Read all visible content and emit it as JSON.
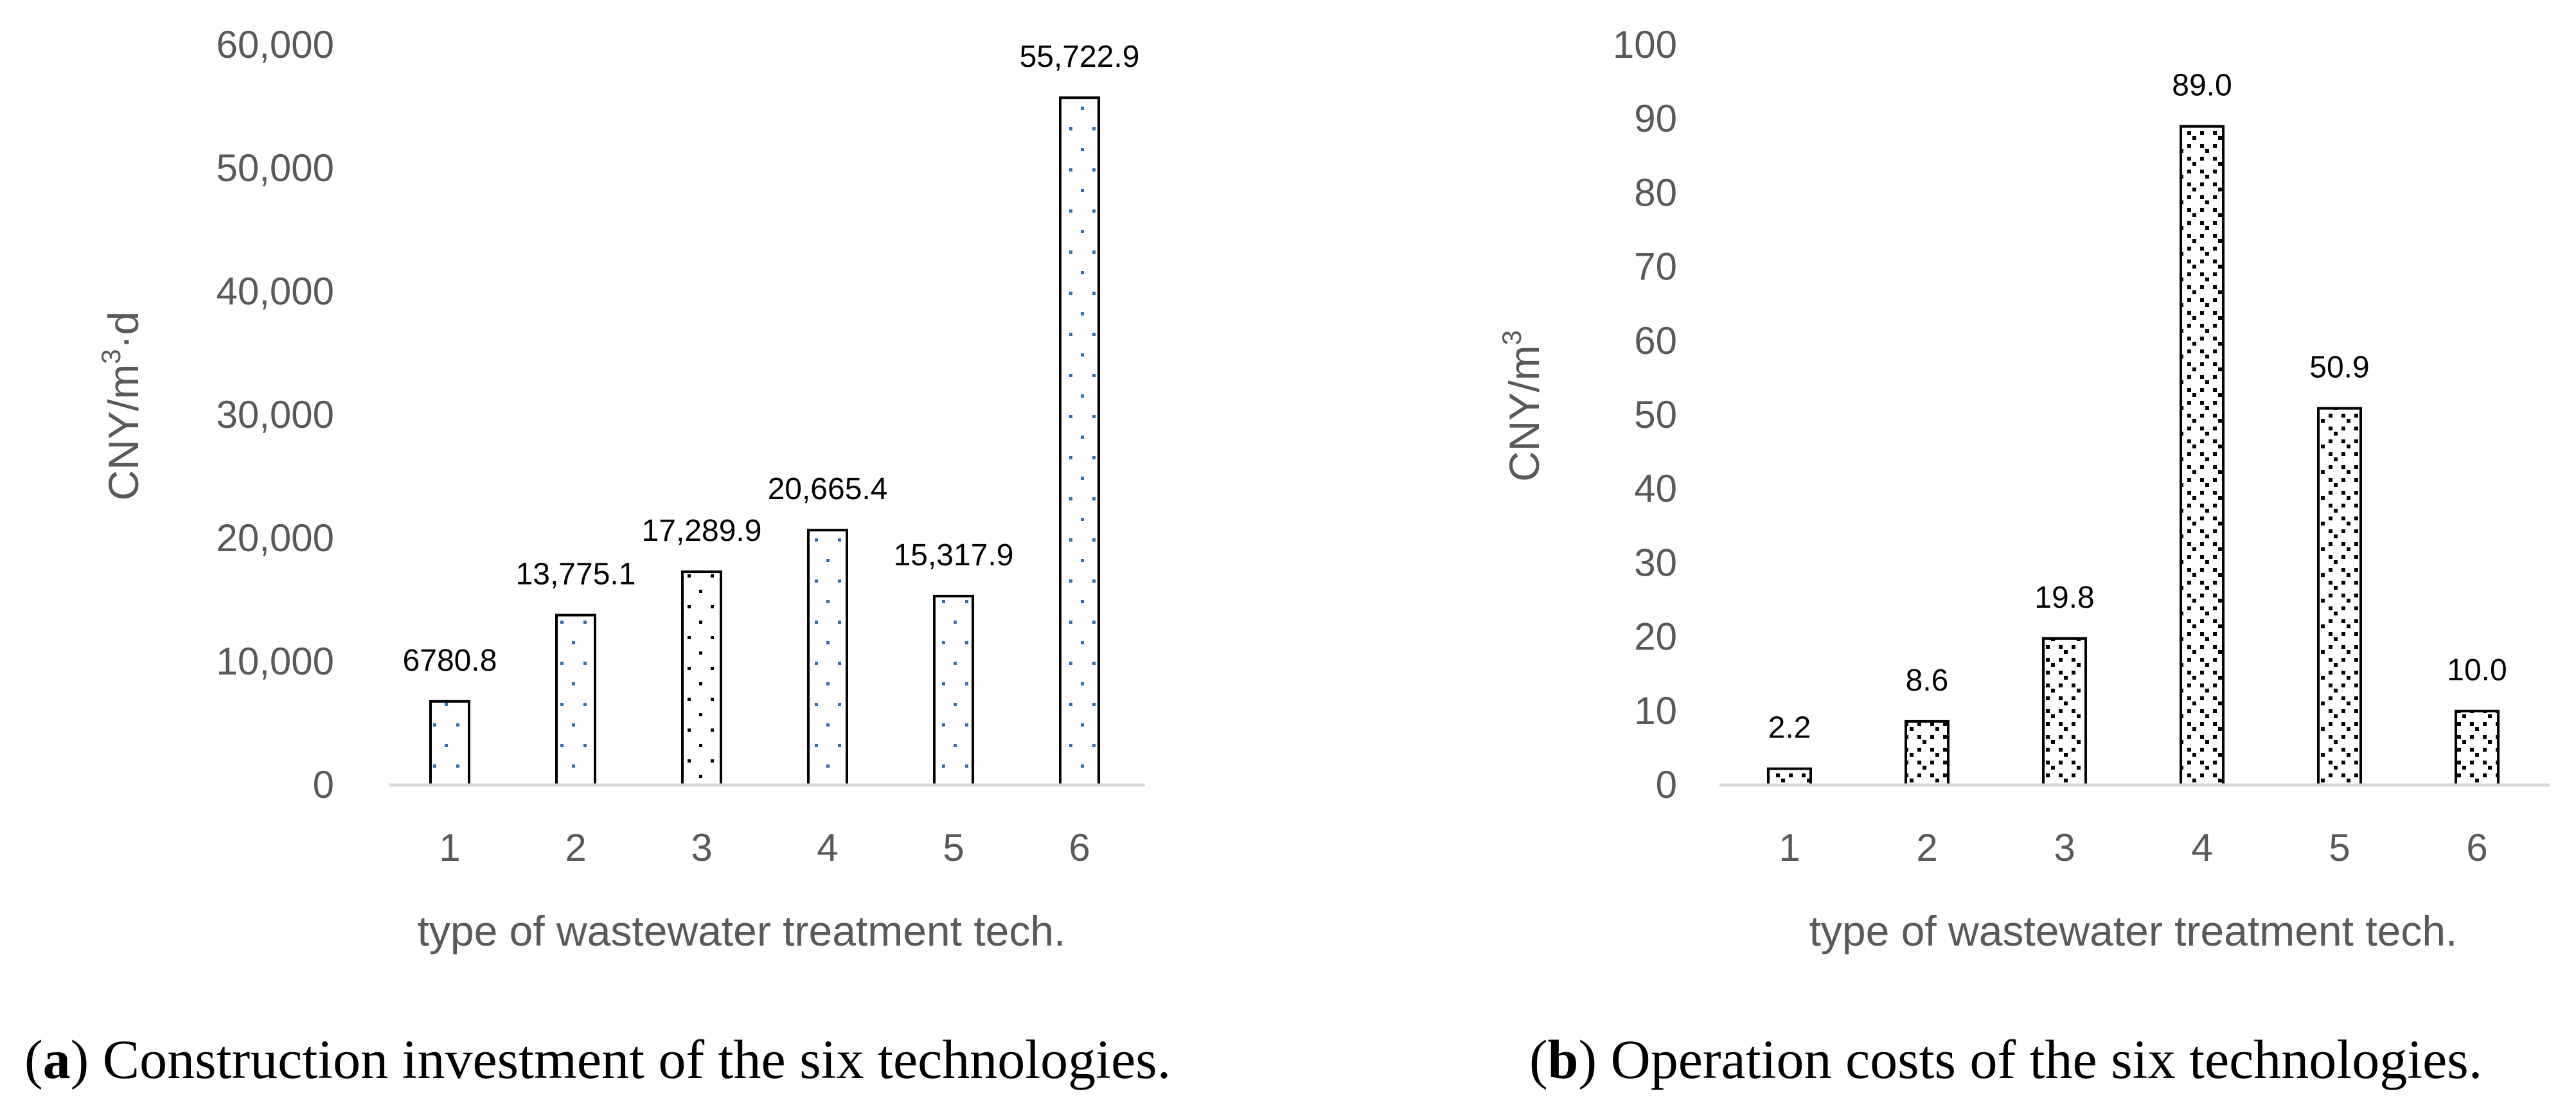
{
  "chart_data": [
    {
      "type": "bar",
      "categories": [
        "1",
        "2",
        "3",
        "4",
        "5",
        "6"
      ],
      "values": [
        6780.8,
        13775.1,
        17289.9,
        20665.4,
        15317.9,
        55722.9
      ],
      "data_labels": [
        "6780.8",
        "13,775.1",
        "17,289.9",
        "20,665.4",
        "15,317.9",
        "55,722.9"
      ],
      "ylim": [
        0,
        60000
      ],
      "yticks": [
        "0",
        "10,000",
        "20,000",
        "30,000",
        "40,000",
        "50,000",
        "60,000"
      ],
      "ylabel_main": "CNY/m",
      "ylabel_sup": "3",
      "ylabel_tail": "·d",
      "xlabel": "type of wastewater treatment tech.",
      "caption_letter": "a",
      "caption_text": "Construction investment of the six technologies.",
      "grid": false,
      "legend": "none",
      "colors": {
        "bar_stroke": "#000000",
        "dots_blue": "#2E6FB7",
        "dots_black": "#000000",
        "axis": "#D9D9D9"
      }
    },
    {
      "type": "bar",
      "categories": [
        "1",
        "2",
        "3",
        "4",
        "5",
        "6"
      ],
      "values": [
        2.2,
        8.6,
        19.8,
        89.0,
        50.9,
        10.0
      ],
      "data_labels": [
        "2.2",
        "8.6",
        "19.8",
        "89.0",
        "50.9",
        "10.0"
      ],
      "ylim": [
        0,
        100
      ],
      "yticks": [
        "0",
        "10",
        "20",
        "30",
        "40",
        "50",
        "60",
        "70",
        "80",
        "90",
        "100"
      ],
      "ylabel_main": "CNY/m",
      "ylabel_sup": "3",
      "ylabel_tail": "",
      "xlabel": "type of wastewater treatment tech.",
      "caption_letter": "b",
      "caption_text": "Operation costs of the six technologies.",
      "grid": false,
      "legend": "none",
      "colors": {
        "bar_stroke": "#000000",
        "pattern": "#000000",
        "axis": "#D9D9D9"
      }
    }
  ]
}
